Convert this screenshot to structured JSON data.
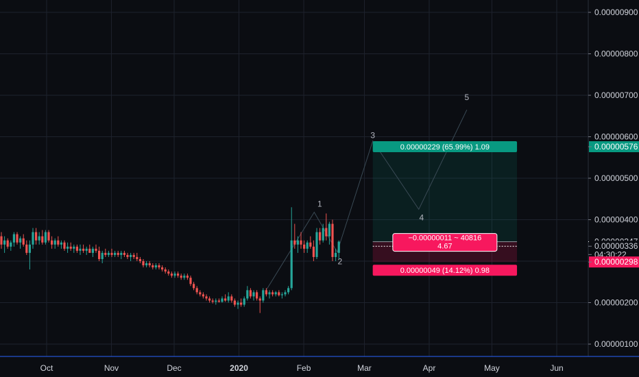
{
  "colors": {
    "background": "#0b0d12",
    "grid": "#1e222d",
    "up": "#26a69a",
    "down": "#ef5350",
    "profit": "#089981",
    "loss": "#f7185e",
    "wave": "#3a4a55",
    "axis_text": "#d1d4dc",
    "price_tag": "#ffffff"
  },
  "chart_data": {
    "type": "candlestick",
    "ylim": [
      8e-07,
      9.3e-06
    ],
    "y_ticks": [
      "0.00000900",
      "0.00000800",
      "0.00000700",
      "0.00000600",
      "0.00000500",
      "0.00000400",
      "0.00000200",
      "0.00000100"
    ],
    "x_ticks": [
      "Oct",
      "Nov",
      "Dec",
      "2020",
      "Feb",
      "Mar",
      "Apr",
      "May",
      "Jun"
    ],
    "x_tick_days": [
      31,
      62,
      92,
      123,
      154,
      183,
      214,
      244,
      275
    ],
    "grid": true,
    "price_scale_labels": [
      {
        "text": "0.00000576",
        "value": 5.76e-06,
        "style": "profit"
      },
      {
        "text": "0.00000347",
        "value": 3.47e-06,
        "style": "current"
      },
      {
        "text": "0.00000336",
        "value": 3.36e-06,
        "style": "plain"
      },
      {
        "text": "04:30:22",
        "value": 3.16e-06,
        "style": "countdown"
      },
      {
        "text": "0.00000298",
        "value": 2.98e-06,
        "style": "loss"
      }
    ],
    "position": {
      "start_day": 187,
      "end_day": 256,
      "entry": 3.47e-06,
      "target": 5.76e-06,
      "stop": 2.98e-06,
      "profit_label": "0.00000229 (65.99%) 1.09",
      "loss_label": "0.00000049 (14.12%) 0.98",
      "center_label_line1": "−0.00000011 ~ 40816",
      "center_label_line2": "4.67"
    },
    "waves": [
      {
        "label": "1",
        "day": 159,
        "value": 4.18e-06
      },
      {
        "label": "2",
        "day": 170,
        "value": 3.22e-06
      },
      {
        "label": "3",
        "day": 187,
        "value": 5.9e-06
      },
      {
        "label": "4",
        "day": 209,
        "value": 4.25e-06
      },
      {
        "label": "5",
        "day": 232,
        "value": 6.65e-06
      }
    ],
    "wave_start": {
      "day": 136,
      "value": 2.3e-06
    },
    "candles": [
      {
        "o": 3.6,
        "h": 3.7,
        "l": 3.3,
        "c": 3.4
      },
      {
        "o": 3.4,
        "h": 3.6,
        "l": 3.2,
        "c": 3.5
      },
      {
        "o": 3.5,
        "h": 3.55,
        "l": 3.3,
        "c": 3.35
      },
      {
        "o": 3.35,
        "h": 3.5,
        "l": 3.25,
        "c": 3.45
      },
      {
        "o": 3.45,
        "h": 3.7,
        "l": 3.35,
        "c": 3.65
      },
      {
        "o": 3.65,
        "h": 3.7,
        "l": 3.4,
        "c": 3.45
      },
      {
        "o": 3.45,
        "h": 3.6,
        "l": 3.3,
        "c": 3.55
      },
      {
        "o": 3.55,
        "h": 3.65,
        "l": 3.35,
        "c": 3.4
      },
      {
        "o": 3.4,
        "h": 3.5,
        "l": 3.15,
        "c": 3.2
      },
      {
        "o": 3.2,
        "h": 3.5,
        "l": 2.8,
        "c": 3.4
      },
      {
        "o": 3.4,
        "h": 3.8,
        "l": 3.3,
        "c": 3.7
      },
      {
        "o": 3.7,
        "h": 3.8,
        "l": 3.4,
        "c": 3.5
      },
      {
        "o": 3.5,
        "h": 3.7,
        "l": 3.4,
        "c": 3.6
      },
      {
        "o": 3.6,
        "h": 3.75,
        "l": 3.4,
        "c": 3.45
      },
      {
        "o": 3.45,
        "h": 3.75,
        "l": 3.4,
        "c": 3.7
      },
      {
        "o": 3.7,
        "h": 3.75,
        "l": 3.45,
        "c": 3.5
      },
      {
        "o": 3.5,
        "h": 3.6,
        "l": 3.3,
        "c": 3.4
      },
      {
        "o": 3.4,
        "h": 3.55,
        "l": 3.3,
        "c": 3.5
      },
      {
        "o": 3.5,
        "h": 3.6,
        "l": 3.35,
        "c": 3.4
      },
      {
        "o": 3.4,
        "h": 3.5,
        "l": 3.3,
        "c": 3.45
      },
      {
        "o": 3.45,
        "h": 3.5,
        "l": 3.25,
        "c": 3.3
      },
      {
        "o": 3.3,
        "h": 3.45,
        "l": 3.2,
        "c": 3.35
      },
      {
        "o": 3.35,
        "h": 3.45,
        "l": 3.25,
        "c": 3.3
      },
      {
        "o": 3.3,
        "h": 3.4,
        "l": 3.2,
        "c": 3.35
      },
      {
        "o": 3.35,
        "h": 3.4,
        "l": 3.2,
        "c": 3.25
      },
      {
        "o": 3.25,
        "h": 3.4,
        "l": 3.15,
        "c": 3.3
      },
      {
        "o": 3.3,
        "h": 3.4,
        "l": 3.2,
        "c": 3.25
      },
      {
        "o": 3.25,
        "h": 3.35,
        "l": 3.15,
        "c": 3.3
      },
      {
        "o": 3.3,
        "h": 3.4,
        "l": 3.2,
        "c": 3.2
      },
      {
        "o": 3.2,
        "h": 3.35,
        "l": 3.1,
        "c": 3.3
      },
      {
        "o": 3.3,
        "h": 3.4,
        "l": 3.2,
        "c": 3.25
      },
      {
        "o": 3.25,
        "h": 3.35,
        "l": 3.0,
        "c": 3.05
      },
      {
        "o": 3.05,
        "h": 3.25,
        "l": 2.95,
        "c": 3.2
      },
      {
        "o": 3.2,
        "h": 3.3,
        "l": 3.1,
        "c": 3.15
      },
      {
        "o": 3.15,
        "h": 3.25,
        "l": 3.1,
        "c": 3.2
      },
      {
        "o": 3.2,
        "h": 3.3,
        "l": 3.1,
        "c": 3.15
      },
      {
        "o": 3.15,
        "h": 3.25,
        "l": 3.1,
        "c": 3.2
      },
      {
        "o": 3.2,
        "h": 3.25,
        "l": 3.1,
        "c": 3.15
      },
      {
        "o": 3.15,
        "h": 3.25,
        "l": 3.05,
        "c": 3.2
      },
      {
        "o": 3.2,
        "h": 3.25,
        "l": 3.1,
        "c": 3.15
      },
      {
        "o": 3.15,
        "h": 3.2,
        "l": 3.05,
        "c": 3.1
      },
      {
        "o": 3.1,
        "h": 3.2,
        "l": 3.0,
        "c": 3.15
      },
      {
        "o": 3.15,
        "h": 3.2,
        "l": 3.05,
        "c": 3.1
      },
      {
        "o": 3.1,
        "h": 3.2,
        "l": 3.0,
        "c": 3.05
      },
      {
        "o": 3.05,
        "h": 3.1,
        "l": 2.95,
        "c": 3.0
      },
      {
        "o": 3.0,
        "h": 3.05,
        "l": 2.85,
        "c": 2.9
      },
      {
        "o": 2.9,
        "h": 3.0,
        "l": 2.85,
        "c": 2.95
      },
      {
        "o": 2.95,
        "h": 3.0,
        "l": 2.85,
        "c": 2.9
      },
      {
        "o": 2.9,
        "h": 2.95,
        "l": 2.8,
        "c": 2.85
      },
      {
        "o": 2.85,
        "h": 2.95,
        "l": 2.8,
        "c": 2.9
      },
      {
        "o": 2.9,
        "h": 2.95,
        "l": 2.8,
        "c": 2.85
      },
      {
        "o": 2.85,
        "h": 2.9,
        "l": 2.75,
        "c": 2.8
      },
      {
        "o": 2.8,
        "h": 2.85,
        "l": 2.7,
        "c": 2.75
      },
      {
        "o": 2.75,
        "h": 2.8,
        "l": 2.65,
        "c": 2.7
      },
      {
        "o": 2.7,
        "h": 2.75,
        "l": 2.6,
        "c": 2.65
      },
      {
        "o": 2.65,
        "h": 2.75,
        "l": 2.6,
        "c": 2.7
      },
      {
        "o": 2.7,
        "h": 2.75,
        "l": 2.6,
        "c": 2.65
      },
      {
        "o": 2.65,
        "h": 2.7,
        "l": 2.55,
        "c": 2.6
      },
      {
        "o": 2.6,
        "h": 2.7,
        "l": 2.55,
        "c": 2.65
      },
      {
        "o": 2.65,
        "h": 2.7,
        "l": 2.55,
        "c": 2.6
      },
      {
        "o": 2.6,
        "h": 2.65,
        "l": 2.4,
        "c": 2.45
      },
      {
        "o": 2.45,
        "h": 2.5,
        "l": 2.3,
        "c": 2.35
      },
      {
        "o": 2.35,
        "h": 2.4,
        "l": 2.2,
        "c": 2.25
      },
      {
        "o": 2.25,
        "h": 2.3,
        "l": 2.15,
        "c": 2.2
      },
      {
        "o": 2.2,
        "h": 2.25,
        "l": 2.1,
        "c": 2.15
      },
      {
        "o": 2.15,
        "h": 2.2,
        "l": 2.05,
        "c": 2.1
      },
      {
        "o": 2.1,
        "h": 2.15,
        "l": 2.0,
        "c": 2.05
      },
      {
        "o": 2.05,
        "h": 2.1,
        "l": 1.98,
        "c": 2.02
      },
      {
        "o": 2.02,
        "h": 2.1,
        "l": 1.95,
        "c": 2.05
      },
      {
        "o": 2.05,
        "h": 2.1,
        "l": 2.0,
        "c": 2.02
      },
      {
        "o": 2.02,
        "h": 2.15,
        "l": 2.0,
        "c": 2.1
      },
      {
        "o": 2.1,
        "h": 2.2,
        "l": 2.02,
        "c": 2.05
      },
      {
        "o": 2.05,
        "h": 2.25,
        "l": 2.0,
        "c": 2.15
      },
      {
        "o": 2.15,
        "h": 2.2,
        "l": 2.0,
        "c": 2.05
      },
      {
        "o": 2.05,
        "h": 2.1,
        "l": 1.9,
        "c": 1.95
      },
      {
        "o": 1.95,
        "h": 2.05,
        "l": 1.85,
        "c": 2.0
      },
      {
        "o": 2.0,
        "h": 2.1,
        "l": 1.9,
        "c": 1.95
      },
      {
        "o": 1.95,
        "h": 2.15,
        "l": 1.9,
        "c": 2.1
      },
      {
        "o": 2.1,
        "h": 2.4,
        "l": 2.05,
        "c": 2.3
      },
      {
        "o": 2.3,
        "h": 2.35,
        "l": 2.1,
        "c": 2.15
      },
      {
        "o": 2.15,
        "h": 2.3,
        "l": 2.05,
        "c": 2.25
      },
      {
        "o": 2.25,
        "h": 2.3,
        "l": 2.05,
        "c": 2.1
      },
      {
        "o": 2.1,
        "h": 2.15,
        "l": 1.75,
        "c": 2.05
      },
      {
        "o": 2.05,
        "h": 2.35,
        "l": 2.0,
        "c": 2.3
      },
      {
        "o": 2.3,
        "h": 2.35,
        "l": 2.15,
        "c": 2.2
      },
      {
        "o": 2.2,
        "h": 2.3,
        "l": 2.1,
        "c": 2.25
      },
      {
        "o": 2.25,
        "h": 2.3,
        "l": 2.15,
        "c": 2.2
      },
      {
        "o": 2.2,
        "h": 2.28,
        "l": 2.15,
        "c": 2.25
      },
      {
        "o": 2.25,
        "h": 2.3,
        "l": 2.15,
        "c": 2.18
      },
      {
        "o": 2.18,
        "h": 2.25,
        "l": 2.1,
        "c": 2.2
      },
      {
        "o": 2.2,
        "h": 2.3,
        "l": 2.15,
        "c": 2.25
      },
      {
        "o": 2.25,
        "h": 2.4,
        "l": 2.2,
        "c": 2.35
      },
      {
        "o": 2.35,
        "h": 4.3,
        "l": 2.3,
        "c": 3.5
      },
      {
        "o": 3.5,
        "h": 3.9,
        "l": 3.3,
        "c": 3.4
      },
      {
        "o": 3.4,
        "h": 3.6,
        "l": 3.2,
        "c": 3.5
      },
      {
        "o": 3.5,
        "h": 3.7,
        "l": 3.3,
        "c": 3.4
      },
      {
        "o": 3.4,
        "h": 3.5,
        "l": 3.2,
        "c": 3.3
      },
      {
        "o": 3.3,
        "h": 3.5,
        "l": 3.2,
        "c": 3.45
      },
      {
        "o": 3.45,
        "h": 3.6,
        "l": 3.3,
        "c": 3.35
      },
      {
        "o": 3.35,
        "h": 3.5,
        "l": 3.0,
        "c": 3.1
      },
      {
        "o": 3.1,
        "h": 3.8,
        "l": 3.05,
        "c": 3.7
      },
      {
        "o": 3.7,
        "h": 3.8,
        "l": 3.4,
        "c": 3.5
      },
      {
        "o": 3.5,
        "h": 3.9,
        "l": 3.45,
        "c": 3.8
      },
      {
        "o": 3.8,
        "h": 4.15,
        "l": 3.5,
        "c": 3.6
      },
      {
        "o": 3.6,
        "h": 3.95,
        "l": 3.4,
        "c": 3.9
      },
      {
        "o": 3.9,
        "h": 4.0,
        "l": 3.0,
        "c": 3.1
      },
      {
        "o": 3.1,
        "h": 3.3,
        "l": 3.0,
        "c": 3.2
      },
      {
        "o": 3.2,
        "h": 3.5,
        "l": 3.05,
        "c": 3.47
      }
    ]
  }
}
